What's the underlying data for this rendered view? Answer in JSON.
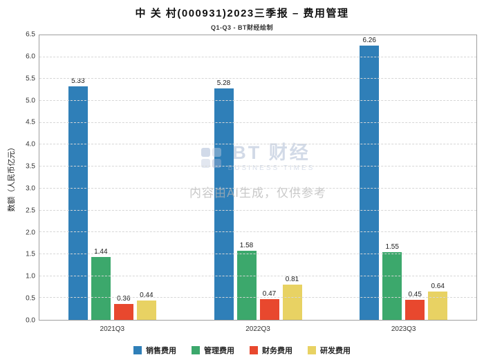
{
  "title": "中 关 村(000931)2023三季报 – 费用管理",
  "subtitle": "Q1-Q3 - BT财经绘制",
  "watermark": {
    "brand": "BT 财经",
    "brand_sub": "BUSINESS TIMES",
    "disclaimer": "内容由AI生成，仅供参考"
  },
  "chart_data": {
    "type": "bar",
    "categories": [
      "2021Q3",
      "2022Q3",
      "2023Q3"
    ],
    "series": [
      {
        "name": "销售费用",
        "color": "#2f7fb8",
        "values": [
          5.33,
          5.28,
          6.26
        ]
      },
      {
        "name": "管理费用",
        "color": "#3ca86c",
        "values": [
          1.44,
          1.58,
          1.55
        ]
      },
      {
        "name": "财务费用",
        "color": "#e8482e",
        "values": [
          0.36,
          0.47,
          0.45
        ]
      },
      {
        "name": "研发费用",
        "color": "#e8d263",
        "values": [
          0.44,
          0.81,
          0.64
        ]
      }
    ],
    "ylabel": "数额（人民币亿元）",
    "ylim": [
      0,
      6.5
    ],
    "ytick_step": 0.5,
    "grid": true,
    "legend_position": "bottom"
  }
}
